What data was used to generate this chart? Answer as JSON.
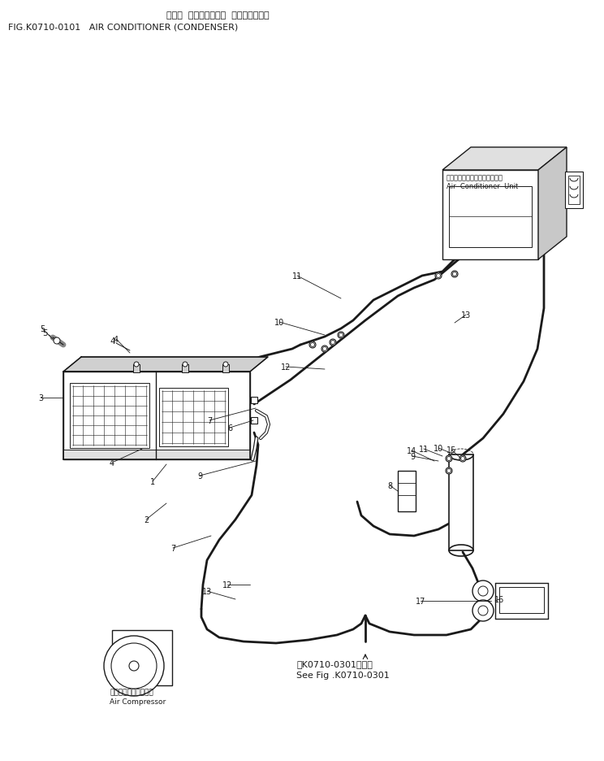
{
  "title_japanese": "エアー  コンディショナ  （コンデンサ）",
  "title_english": "FIG.K0710-0101   AIR CONDITIONER (CONDENSER)",
  "bg_color": "#ffffff",
  "line_color": "#1a1a1a",
  "text_color": "#1a1a1a",
  "fig_width": 7.44,
  "fig_height": 9.37,
  "dpi": 100,
  "ac_unit_label_jp": "エアーコンディショナユニット",
  "ac_unit_label_en": "Air  Conditioner  Unit",
  "compressor_label_jp": "エアーコンプレッサ．",
  "compressor_label_en": "Air Compressor",
  "see_fig_jp": "第K0710-0301図参照",
  "see_fig_en": "See Fig .K0710-0301"
}
